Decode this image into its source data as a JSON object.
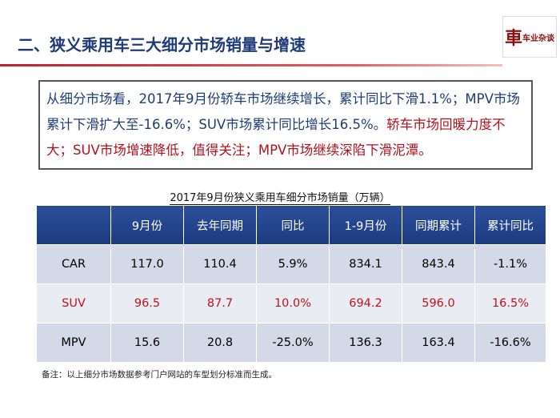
{
  "header": {
    "title": "二、狭义乘用车三大细分市场销量与增速",
    "logo": {
      "mark": "車",
      "name": "车业杂谈"
    }
  },
  "summary": {
    "normal": "从细分市场看，2017年9月份轿车市场继续增长，累计同比下滑1.1%；MPV市场累计下滑扩大至-16.6%；SUV市场累计同比增长16.5%。",
    "highlight": "轿车市场回暖力度不大；SUV市场增速降低，值得关注；MPV市场继续深陷下滑泥潭。"
  },
  "table": {
    "caption": "2017年9月份狭义乘用车细分市场销量（万辆）",
    "columns": [
      "",
      "9月份",
      "去年同期",
      "同比",
      "1-9月份",
      "同期累计",
      "累计同比"
    ],
    "rows": [
      [
        "CAR",
        "117.0",
        "110.4",
        "5.9%",
        "834.1",
        "843.4",
        "-1.1%"
      ],
      [
        "SUV",
        "96.5",
        "87.7",
        "10.0%",
        "694.2",
        "596.0",
        "16.5%"
      ],
      [
        "MPV",
        "15.6",
        "20.8",
        "-25.0%",
        "136.3",
        "163.4",
        "-16.6%"
      ]
    ]
  },
  "footnote": "备注：以上细分市场数据参考门户网站的车型划分标准而生成。"
}
